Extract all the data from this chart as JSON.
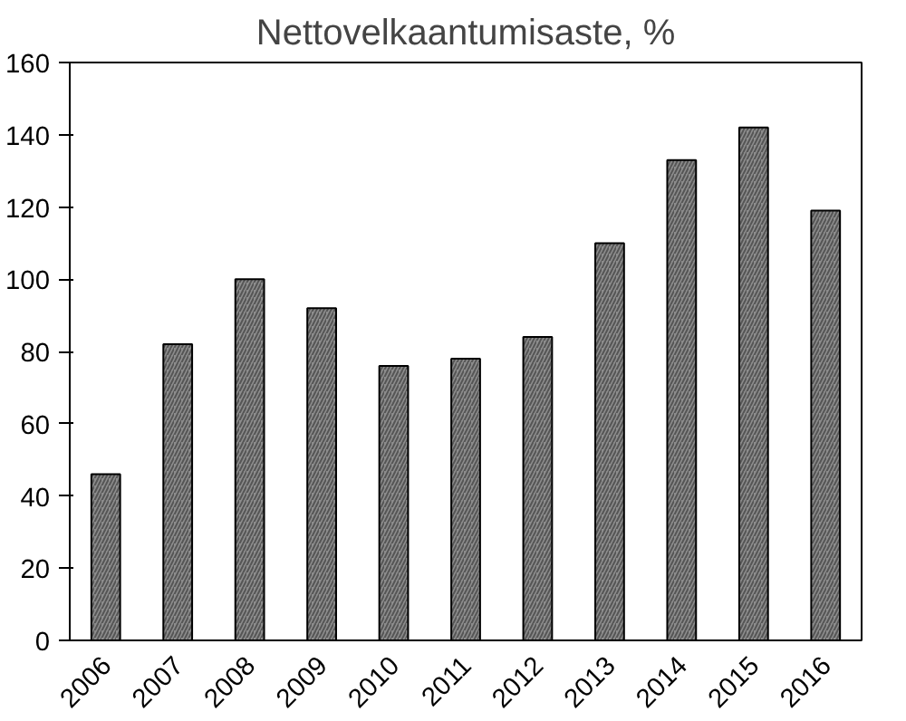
{
  "chart_data": {
    "type": "bar",
    "title": "Nettovelkaantumisaste, %",
    "categories": [
      "2006",
      "2007",
      "2008",
      "2009",
      "2010",
      "2011",
      "2012",
      "2013",
      "2014",
      "2015",
      "2016"
    ],
    "values": [
      46,
      82,
      100,
      92,
      76,
      78,
      84,
      110,
      133,
      142,
      119
    ],
    "color": "#8c8c8c",
    "ylim": [
      0,
      160
    ],
    "yticks": [
      0,
      20,
      40,
      60,
      80,
      100,
      120,
      140,
      160
    ],
    "grid": false
  }
}
